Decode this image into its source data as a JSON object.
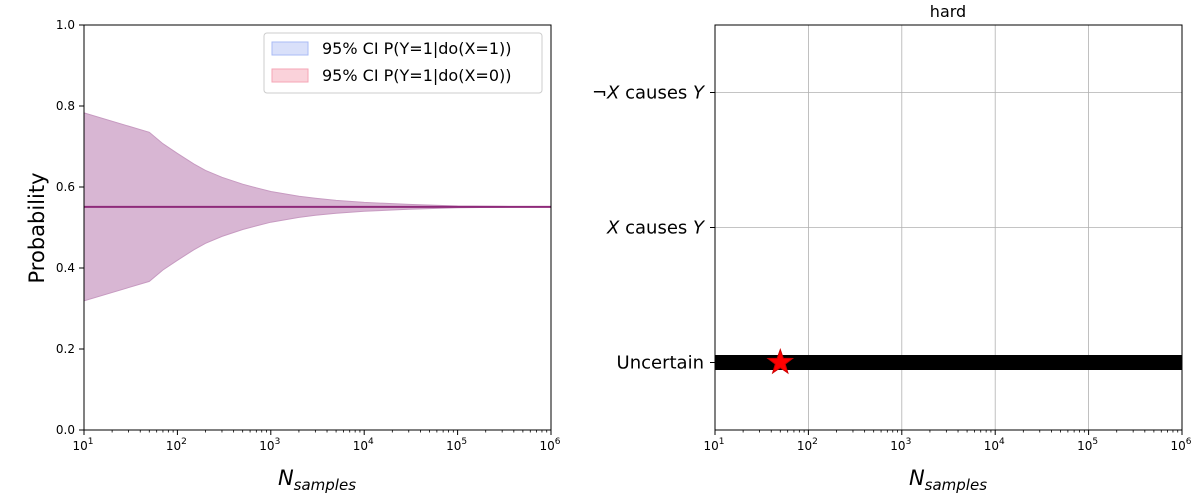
{
  "chart_data": [
    {
      "type": "area",
      "title": "",
      "xlabel": "N",
      "xlabel_sub": "samples",
      "ylabel": "Probability",
      "xscale": "log",
      "xlim": [
        10,
        1000000
      ],
      "ylim": [
        0,
        1
      ],
      "xticks": [
        {
          "value": 10,
          "base": "10",
          "exp": "1"
        },
        {
          "value": 100,
          "base": "10",
          "exp": "2"
        },
        {
          "value": 1000,
          "base": "10",
          "exp": "3"
        },
        {
          "value": 10000,
          "base": "10",
          "exp": "4"
        },
        {
          "value": 100000,
          "base": "10",
          "exp": "5"
        },
        {
          "value": 1000000,
          "base": "10",
          "exp": "6"
        }
      ],
      "yticks": [
        "0.0",
        "0.2",
        "0.4",
        "0.6",
        "0.8",
        "1.0"
      ],
      "grid": false,
      "legend_position": "top-right",
      "legend": [
        {
          "label": "95% CI P(Y=1|do(X=1))",
          "color": "#aabbf5"
        },
        {
          "label": "95% CI P(Y=1|do(X=0))",
          "color": "#f5a6b6"
        }
      ],
      "overlap_color": "#d8b6d3",
      "line_color": "#8e2a7a",
      "estimate": 0.551,
      "series": [
        {
          "x": [
            10,
            50,
            70,
            100,
            150,
            200,
            300,
            500,
            700,
            1000,
            2000,
            3000,
            5000,
            10000,
            30000,
            100000,
            300000,
            1000000
          ],
          "lower": [
            0.319,
            0.367,
            0.395,
            0.419,
            0.445,
            0.461,
            0.478,
            0.495,
            0.504,
            0.513,
            0.525,
            0.53,
            0.535,
            0.54,
            0.545,
            0.549,
            0.55,
            0.551
          ],
          "upper": [
            0.783,
            0.735,
            0.707,
            0.683,
            0.657,
            0.641,
            0.624,
            0.607,
            0.598,
            0.589,
            0.577,
            0.572,
            0.567,
            0.562,
            0.557,
            0.553,
            0.552,
            0.551
          ]
        }
      ]
    },
    {
      "type": "line",
      "title": "hard",
      "xlabel": "N",
      "xlabel_sub": "samples",
      "xscale": "log",
      "xlim": [
        10,
        1000000
      ],
      "xticks": [
        {
          "value": 10,
          "base": "10",
          "exp": "1"
        },
        {
          "value": 100,
          "base": "10",
          "exp": "2"
        },
        {
          "value": 1000,
          "base": "10",
          "exp": "3"
        },
        {
          "value": 10000,
          "base": "10",
          "exp": "4"
        },
        {
          "value": 100000,
          "base": "10",
          "exp": "5"
        },
        {
          "value": 1000000,
          "base": "10",
          "exp": "6"
        }
      ],
      "categories": [
        {
          "label": "Uncertain",
          "value": 0
        },
        {
          "label_math": "X",
          "label_rest": " causes ",
          "label_math2": "Y",
          "prefix": "",
          "value": 1
        },
        {
          "label_math": "X",
          "label_rest": " causes ",
          "label_math2": "Y",
          "prefix": "¬",
          "value": 2
        }
      ],
      "ylim": [
        -0.5,
        2.5
      ],
      "grid": true,
      "decision": {
        "x": [
          10,
          1000000
        ],
        "y": 0,
        "color": "#000000"
      },
      "marker": {
        "x": 50,
        "y": 0,
        "shape": "star",
        "color": "#ff0000"
      }
    }
  ]
}
